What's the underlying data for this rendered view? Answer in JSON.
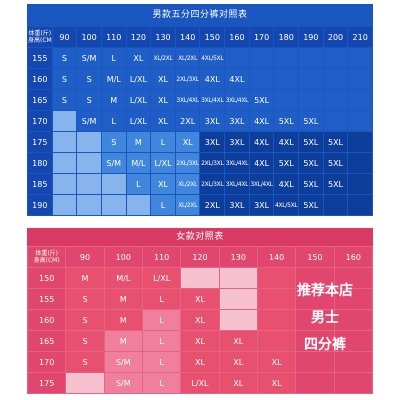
{
  "men": {
    "title": "男款五分四分裤对照表",
    "corner_weight": "体重(斤)",
    "corner_height": "身高(CM)",
    "weights": [
      "90",
      "100",
      "110",
      "120",
      "130",
      "140",
      "150",
      "160",
      "170",
      "180",
      "190",
      "200",
      "210"
    ],
    "rows": [
      {
        "height": "155",
        "cells": [
          "S",
          "S/M",
          "L",
          "XL",
          "XL/2XL",
          "XL/2XL",
          "4XL/5XL",
          "",
          "",
          "",
          "",
          "",
          ""
        ]
      },
      {
        "height": "160",
        "cells": [
          "S",
          "S",
          "M/L",
          "L/XL",
          "XL",
          "2XL/3XL",
          "4XL",
          "4XL",
          "",
          "",
          "",
          "",
          ""
        ]
      },
      {
        "height": "165",
        "cells": [
          "S",
          "S",
          "M",
          "L/XL",
          "XL",
          "3XL/4XL",
          "3XL/4XL",
          "3XL/4XL",
          "5XL",
          "",
          "",
          "",
          ""
        ]
      },
      {
        "height": "170",
        "cells": [
          "",
          "S/M",
          "L",
          "L/XL",
          "XL",
          "2XL",
          "3XL",
          "3XL",
          "4XL",
          "5XL",
          "5XL",
          "",
          ""
        ]
      },
      {
        "height": "175",
        "cells": [
          "",
          "",
          "S",
          "M",
          "L",
          "XL",
          "3XL",
          "3XL",
          "4XL",
          "4XL",
          "5XL",
          "5XL",
          ""
        ]
      },
      {
        "height": "180",
        "cells": [
          "",
          "",
          "S/M",
          "M/L",
          "L/XL",
          "2XL/3XL",
          "2XL/3XL",
          "3XL/4XL",
          "4XL",
          "5XL",
          "5XL",
          "5XL",
          ""
        ]
      },
      {
        "height": "185",
        "cells": [
          "",
          "",
          "",
          "L",
          "XL",
          "XL/2XL",
          "2XL/3XL",
          "3XL/4XL",
          "3XL/4XL",
          "4XL",
          "5XL",
          "5XL",
          ""
        ]
      },
      {
        "height": "190",
        "cells": [
          "",
          "",
          "",
          "",
          "L",
          "XL/2XL",
          "2XL",
          "3XL",
          "3XL",
          "4XL/5XL",
          "5XL",
          "",
          ""
        ]
      }
    ],
    "shades": [
      [
        "deep",
        "deep",
        "deep",
        "deep",
        "deep",
        "deep",
        "deep",
        "deep",
        "deep",
        "deep",
        "deep",
        "deep",
        "deep"
      ],
      [
        "deep",
        "deep",
        "deep",
        "deep",
        "deep",
        "deep",
        "deep",
        "deep",
        "deep",
        "deep",
        "deep",
        "deep",
        "deep"
      ],
      [
        "deep",
        "deep",
        "deep",
        "deep",
        "deep",
        "deep",
        "deep",
        "deep",
        "deep",
        "deep",
        "deep",
        "deep",
        "deep"
      ],
      [
        "light",
        "deep",
        "deep",
        "deep",
        "deep",
        "deep",
        "deep",
        "deep",
        "deep",
        "deep",
        "deep",
        "deep",
        "deep"
      ],
      [
        "light",
        "light",
        "mid",
        "mid",
        "mid",
        "mid",
        "dark",
        "dark",
        "dark",
        "dark",
        "dark",
        "dark",
        "dark"
      ],
      [
        "light",
        "light",
        "mid",
        "mid",
        "mid",
        "mid",
        "dark",
        "dark",
        "dark",
        "dark",
        "dark",
        "dark",
        "dark"
      ],
      [
        "light",
        "light",
        "light",
        "mid",
        "mid",
        "mid",
        "dark",
        "dark",
        "dark",
        "dark",
        "dark",
        "dark",
        "dark"
      ],
      [
        "light",
        "light",
        "light",
        "light",
        "mid",
        "mid",
        "dark",
        "dark",
        "dark",
        "dark",
        "dark",
        "dark",
        "dark"
      ]
    ]
  },
  "women": {
    "title": "女款对照表",
    "corner_weight": "体重(斤)",
    "corner_height": "身高(CM)",
    "weights": [
      "90",
      "100",
      "110",
      "120",
      "130",
      "140",
      "150",
      "160"
    ],
    "rows": [
      {
        "height": "150",
        "cells": [
          "M",
          "M/L",
          "L/XL",
          "",
          "",
          "",
          "",
          ""
        ]
      },
      {
        "height": "155",
        "cells": [
          "S",
          "M",
          "L",
          "XL",
          "",
          "",
          "",
          ""
        ]
      },
      {
        "height": "160",
        "cells": [
          "S",
          "M",
          "L",
          "XL",
          "",
          "",
          "",
          ""
        ]
      },
      {
        "height": "165",
        "cells": [
          "S",
          "M",
          "L",
          "XL",
          "XL",
          "",
          "",
          ""
        ]
      },
      {
        "height": "170",
        "cells": [
          "S",
          "S/M",
          "L",
          "XL",
          "XL",
          "XL",
          "",
          ""
        ]
      },
      {
        "height": "175",
        "cells": [
          "",
          "S/M",
          "L",
          "L/XL",
          "XL",
          "XL",
          "",
          ""
        ]
      }
    ],
    "promo_lines": [
      "推荐本店",
      "男士",
      "四分裤"
    ]
  },
  "colors": {
    "men_accent": "#1a56c0",
    "women_accent": "#e0466e"
  }
}
